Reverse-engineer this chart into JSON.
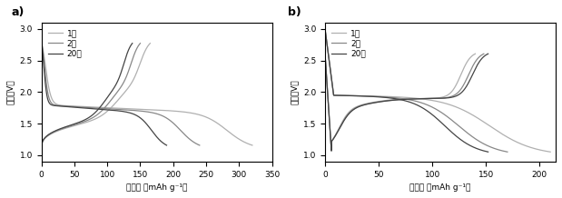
{
  "panel_a": {
    "label": "a)",
    "xlabel": "比容量 （mAh g⁻¹）",
    "ylabel": "电压（V）",
    "xlim": [
      0,
      350
    ],
    "ylim": [
      0.9,
      3.1
    ],
    "xticks": [
      0,
      50,
      100,
      150,
      200,
      250,
      300,
      350
    ],
    "yticks": [
      1.0,
      1.5,
      2.0,
      2.5,
      3.0
    ],
    "legend_labels": [
      "1次",
      "2次",
      "20次"
    ],
    "line_colors": [
      "#b0b0b0",
      "#888888",
      "#444444"
    ],
    "charge_caps": [
      165,
      150,
      138
    ],
    "discharge_caps": [
      320,
      240,
      190
    ]
  },
  "panel_b": {
    "label": "b)",
    "xlabel": "比容量 （mAh g⁻¹）",
    "ylabel": "电压（V）",
    "xlim": [
      0,
      215
    ],
    "ylim": [
      0.9,
      3.1
    ],
    "xticks": [
      0,
      50,
      100,
      150,
      200
    ],
    "yticks": [
      1.0,
      1.5,
      2.0,
      2.5,
      3.0
    ],
    "legend_labels": [
      "1次",
      "2次",
      "20次"
    ],
    "line_colors": [
      "#b0b0b0",
      "#888888",
      "#444444"
    ],
    "charge_caps": [
      140,
      148,
      152
    ],
    "discharge_caps": [
      210,
      170,
      152
    ]
  },
  "figsize": [
    6.19,
    2.18
  ],
  "dpi": 100
}
